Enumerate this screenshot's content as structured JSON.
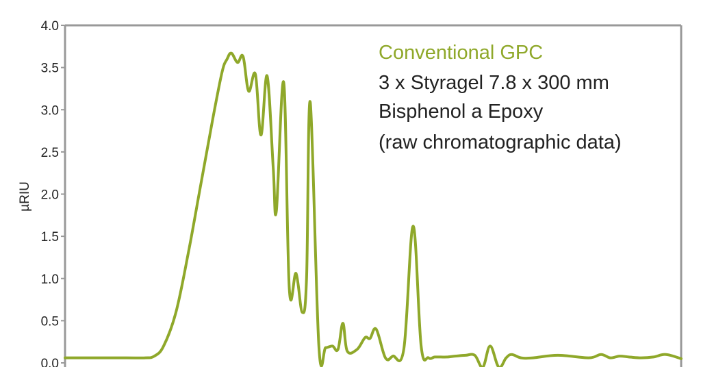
{
  "chart_data": {
    "type": "line",
    "title": "",
    "xlabel": "",
    "ylabel": "µRIU",
    "ylim": [
      0.0,
      4.0
    ],
    "yticks": [
      "0.0",
      "0.5",
      "1.0",
      "1.5",
      "2.0",
      "2.5",
      "3.0",
      "3.5",
      "4.0"
    ],
    "grid": false,
    "annotation": {
      "lines": [
        "Conventional GPC",
        "3 x Styragel 7.8 x 300 mm",
        "Bisphenol a Epoxy",
        "(raw chromatographic data)"
      ]
    },
    "colors": {
      "series": "#8fa82a",
      "highlight": "#8fa82a",
      "axis": "#999999",
      "text": "#222222"
    },
    "series": [
      {
        "x": [
          0,
          0.02,
          0.05,
          0.1,
          0.13,
          0.145,
          0.16,
          0.18,
          0.2,
          0.22,
          0.24,
          0.255,
          0.263,
          0.27,
          0.28,
          0.289,
          0.298,
          0.309,
          0.318,
          0.328,
          0.338,
          0.343,
          0.355,
          0.364,
          0.375,
          0.385,
          0.392,
          0.398,
          0.412,
          0.423,
          0.434,
          0.443,
          0.451,
          0.458,
          0.474,
          0.487,
          0.495,
          0.505,
          0.52,
          0.532,
          0.55,
          0.565,
          0.578,
          0.59,
          0.6,
          0.61,
          0.62,
          0.633,
          0.65,
          0.665,
          0.678,
          0.69,
          0.704,
          0.716,
          0.725,
          0.74,
          0.76,
          0.8,
          0.85,
          0.87,
          0.885,
          0.9,
          0.915,
          0.935,
          0.955,
          0.975,
          1.0
        ],
        "y": [
          0.06,
          0.06,
          0.06,
          0.06,
          0.06,
          0.08,
          0.2,
          0.6,
          1.3,
          2.1,
          2.9,
          3.45,
          3.6,
          3.67,
          3.56,
          3.63,
          3.22,
          3.42,
          2.7,
          3.4,
          2.3,
          1.8,
          3.32,
          0.88,
          1.06,
          0.6,
          1.0,
          3.09,
          0.2,
          0.18,
          0.2,
          0.16,
          0.47,
          0.14,
          0.16,
          0.3,
          0.29,
          0.4,
          0.06,
          0.08,
          0.17,
          1.62,
          0.2,
          0.06,
          0.07,
          0.07,
          0.07,
          0.08,
          0.09,
          0.09,
          -0.05,
          0.2,
          -0.05,
          0.06,
          0.1,
          0.06,
          0.06,
          0.09,
          0.06,
          0.1,
          0.06,
          0.08,
          0.07,
          0.06,
          0.07,
          0.1,
          0.05
        ]
      }
    ]
  }
}
